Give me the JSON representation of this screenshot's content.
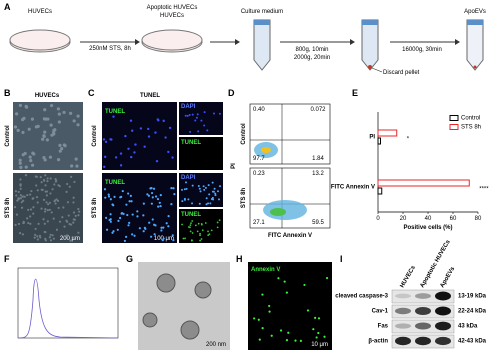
{
  "panel_a": {
    "letter": "A",
    "huvecs": "HUVECs",
    "step1": "250nM STS, 8h",
    "apoptotic": "Apoptotic HUVECs",
    "medium": "Culture medium",
    "step2a": "800g, 10min",
    "step2b": "2000g, 20min",
    "discard": "Discard pellet",
    "step3": "16000g, 30min",
    "apoevs": "ApoEVs"
  },
  "panel_b": {
    "letter": "B",
    "title": "HUVECs",
    "row1": "Control",
    "row2": "STS 8h",
    "scale": "200 μm"
  },
  "panel_c": {
    "letter": "C",
    "title": "TUNEL",
    "tunel": "TUNEL",
    "dapi": "DAPI",
    "row1": "Control",
    "row2": "STS 8h",
    "scale": "100 μm"
  },
  "panel_d": {
    "letter": "D",
    "ylabel": "PI",
    "xlabel": "FITC Annexin V",
    "row1": "Control",
    "row2": "STS 8h",
    "control": [
      "0.40",
      "0.072",
      "97.7",
      "1.84"
    ],
    "sts": [
      "0.23",
      "13.2",
      "27.1",
      "59.5"
    ]
  },
  "chart_data": {
    "type": "bar",
    "letter": "E",
    "orientation": "horizontal",
    "categories": [
      "PI",
      "FITC Annexin V"
    ],
    "series": [
      {
        "name": "Control",
        "color": "#000000",
        "values": [
          2,
          3
        ]
      },
      {
        "name": "STS 8h",
        "color": "#e8262a",
        "values": [
          15,
          73
        ]
      }
    ],
    "xlim": [
      0,
      80
    ],
    "xticks": [
      0,
      20,
      40,
      60,
      80
    ],
    "xlabel": "Positive cells (%)",
    "significance": [
      "*",
      "****"
    ],
    "legend": "upper right"
  },
  "panel_f": {
    "letter": "F"
  },
  "panel_g": {
    "letter": "G",
    "scale": "200 nm"
  },
  "panel_h": {
    "letter": "H",
    "label": "Annexin V",
    "scale": "10 μm"
  },
  "panel_i": {
    "letter": "I",
    "columns": [
      "HUVECs",
      "Apoptotic HUVECs",
      "ApoEVs"
    ],
    "rows": [
      [
        "cleaved caspase-3",
        "13-19 kDa"
      ],
      [
        "Cav-1",
        "22-24 kDa"
      ],
      [
        "Fas",
        "43 kDa"
      ],
      [
        "β-actin",
        "42-43 kDa"
      ]
    ]
  }
}
